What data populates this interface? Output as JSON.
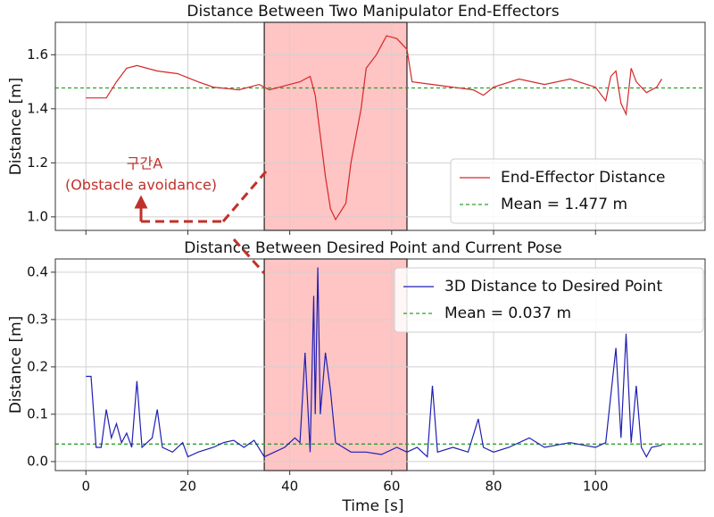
{
  "chart_data": [
    {
      "type": "line",
      "title": "Distance Between Two Manipulator End-Effectors",
      "ylabel": "Distance [m]",
      "x": [
        0,
        4,
        6,
        8,
        10,
        14,
        18,
        22,
        25,
        30,
        34,
        36,
        40,
        42,
        44,
        45,
        46,
        47,
        48,
        49,
        51,
        52,
        54,
        55,
        57,
        59,
        61,
        63,
        64,
        68,
        72,
        76,
        78,
        80,
        85,
        90,
        95,
        100,
        102,
        103,
        104,
        105,
        106,
        107,
        108,
        110,
        112,
        113
      ],
      "series": [
        {
          "name": "End-Effector Distance",
          "color": "#d62728",
          "values": [
            1.44,
            1.44,
            1.5,
            1.55,
            1.56,
            1.54,
            1.53,
            1.5,
            1.48,
            1.47,
            1.49,
            1.47,
            1.49,
            1.5,
            1.52,
            1.45,
            1.3,
            1.15,
            1.03,
            0.99,
            1.05,
            1.2,
            1.4,
            1.55,
            1.6,
            1.67,
            1.66,
            1.62,
            1.5,
            1.49,
            1.48,
            1.47,
            1.45,
            1.48,
            1.51,
            1.49,
            1.51,
            1.48,
            1.43,
            1.52,
            1.54,
            1.42,
            1.38,
            1.55,
            1.5,
            1.46,
            1.48,
            1.51
          ]
        }
      ],
      "hlines": [
        {
          "name": "Mean = 1.477 m",
          "value": 1.477,
          "color": "#2ca02c"
        }
      ],
      "highlight": [
        35,
        63
      ],
      "annotations": [
        "구간A",
        "(Obstacle avoidance)"
      ],
      "xlim": [
        -6,
        121.5
      ],
      "ylim": [
        0.95,
        1.72
      ],
      "xticks": [
        0,
        20,
        40,
        60,
        80,
        100
      ],
      "xticklabels": false,
      "yticks": [
        {
          "value": 1,
          "label": "1.0"
        },
        1.2,
        1.4,
        1.6
      ],
      "grid": true,
      "legend": "lower right"
    },
    {
      "type": "line",
      "title": "Distance Between Desired Point and Current Pose",
      "ylabel": "Distance [m]",
      "xlabel": "Time [s]",
      "x": [
        0,
        1,
        2,
        3,
        4,
        5,
        6,
        7,
        8,
        9,
        10,
        11,
        12,
        13,
        14,
        15,
        17,
        19,
        20,
        22,
        25,
        27,
        29,
        31,
        33,
        35,
        37,
        39,
        41,
        42,
        43,
        44,
        44.7,
        45,
        45.5,
        46,
        47,
        48,
        49,
        52,
        55,
        58,
        61,
        63,
        65,
        67,
        68,
        69,
        72,
        75,
        77,
        78,
        80,
        83,
        87,
        90,
        95,
        100,
        102,
        104,
        105,
        106,
        107,
        108,
        109,
        110,
        111,
        113
      ],
      "series": [
        {
          "name": "3D Distance to Desired Point",
          "color": "#1f1fb4",
          "values": [
            0.18,
            0.18,
            0.03,
            0.03,
            0.11,
            0.05,
            0.08,
            0.04,
            0.06,
            0.03,
            0.17,
            0.03,
            0.04,
            0.05,
            0.11,
            0.03,
            0.02,
            0.04,
            0.01,
            0.02,
            0.03,
            0.04,
            0.045,
            0.03,
            0.045,
            0.01,
            0.02,
            0.03,
            0.05,
            0.04,
            0.23,
            0.02,
            0.35,
            0.1,
            0.41,
            0.1,
            0.23,
            0.15,
            0.04,
            0.02,
            0.02,
            0.015,
            0.03,
            0.02,
            0.03,
            0.01,
            0.16,
            0.02,
            0.03,
            0.02,
            0.09,
            0.03,
            0.02,
            0.03,
            0.05,
            0.03,
            0.04,
            0.03,
            0.04,
            0.24,
            0.05,
            0.27,
            0.04,
            0.16,
            0.03,
            0.01,
            0.03,
            0.035
          ]
        }
      ],
      "hlines": [
        {
          "name": "Mean = 0.037 m",
          "value": 0.037,
          "color": "#2ca02c"
        }
      ],
      "highlight": [
        35,
        63
      ],
      "xlim": [
        -6,
        121.5
      ],
      "ylim": [
        -0.019,
        0.428
      ],
      "xticks": [
        0,
        20,
        40,
        60,
        80,
        100
      ],
      "xticklabels": true,
      "yticks": [
        {
          "value": 0,
          "label": "0.0"
        },
        0.1,
        0.2,
        0.3,
        0.4
      ],
      "grid": true,
      "legend": "upper right"
    }
  ]
}
